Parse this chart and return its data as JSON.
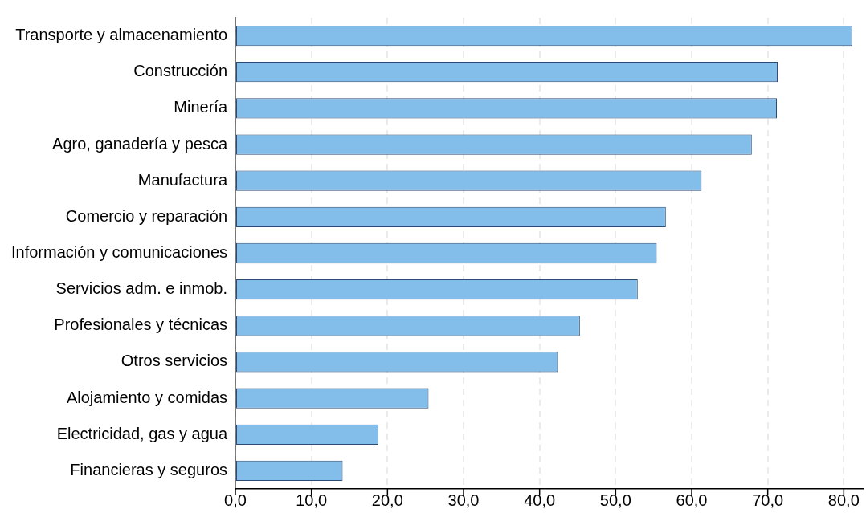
{
  "chart_data": {
    "type": "bar",
    "orientation": "horizontal",
    "categories": [
      "Transporte y almacenamiento",
      "Construcción",
      "Minería",
      "Agro, ganadería y pesca",
      "Manufactura",
      "Comercio y reparación",
      "Información y comunicaciones",
      "Servicios adm. e inmob.",
      "Profesionales y técnicas",
      "Otros servicios",
      "Alojamiento y comidas",
      "Electricidad, gas y agua",
      "Financieras y seguros"
    ],
    "values": [
      81.1,
      71.3,
      71.2,
      67.9,
      61.3,
      56.6,
      55.4,
      52.9,
      45.3,
      42.4,
      25.4,
      18.8,
      14.1
    ],
    "color": "#82bee9",
    "xlim": [
      0,
      82.5
    ],
    "xticks": [
      {
        "value": 0,
        "label": "0,0"
      },
      {
        "value": 10,
        "label": "10,0"
      },
      {
        "value": 20,
        "label": "20,0"
      },
      {
        "value": 30,
        "label": "30,0"
      },
      {
        "value": 40,
        "label": "40,0"
      },
      {
        "value": 50,
        "label": "50,0"
      },
      {
        "value": 60,
        "label": "60,0"
      },
      {
        "value": 70,
        "label": "70,0"
      },
      {
        "value": 80,
        "label": "80,0"
      }
    ],
    "grid": "x",
    "legend": false
  }
}
